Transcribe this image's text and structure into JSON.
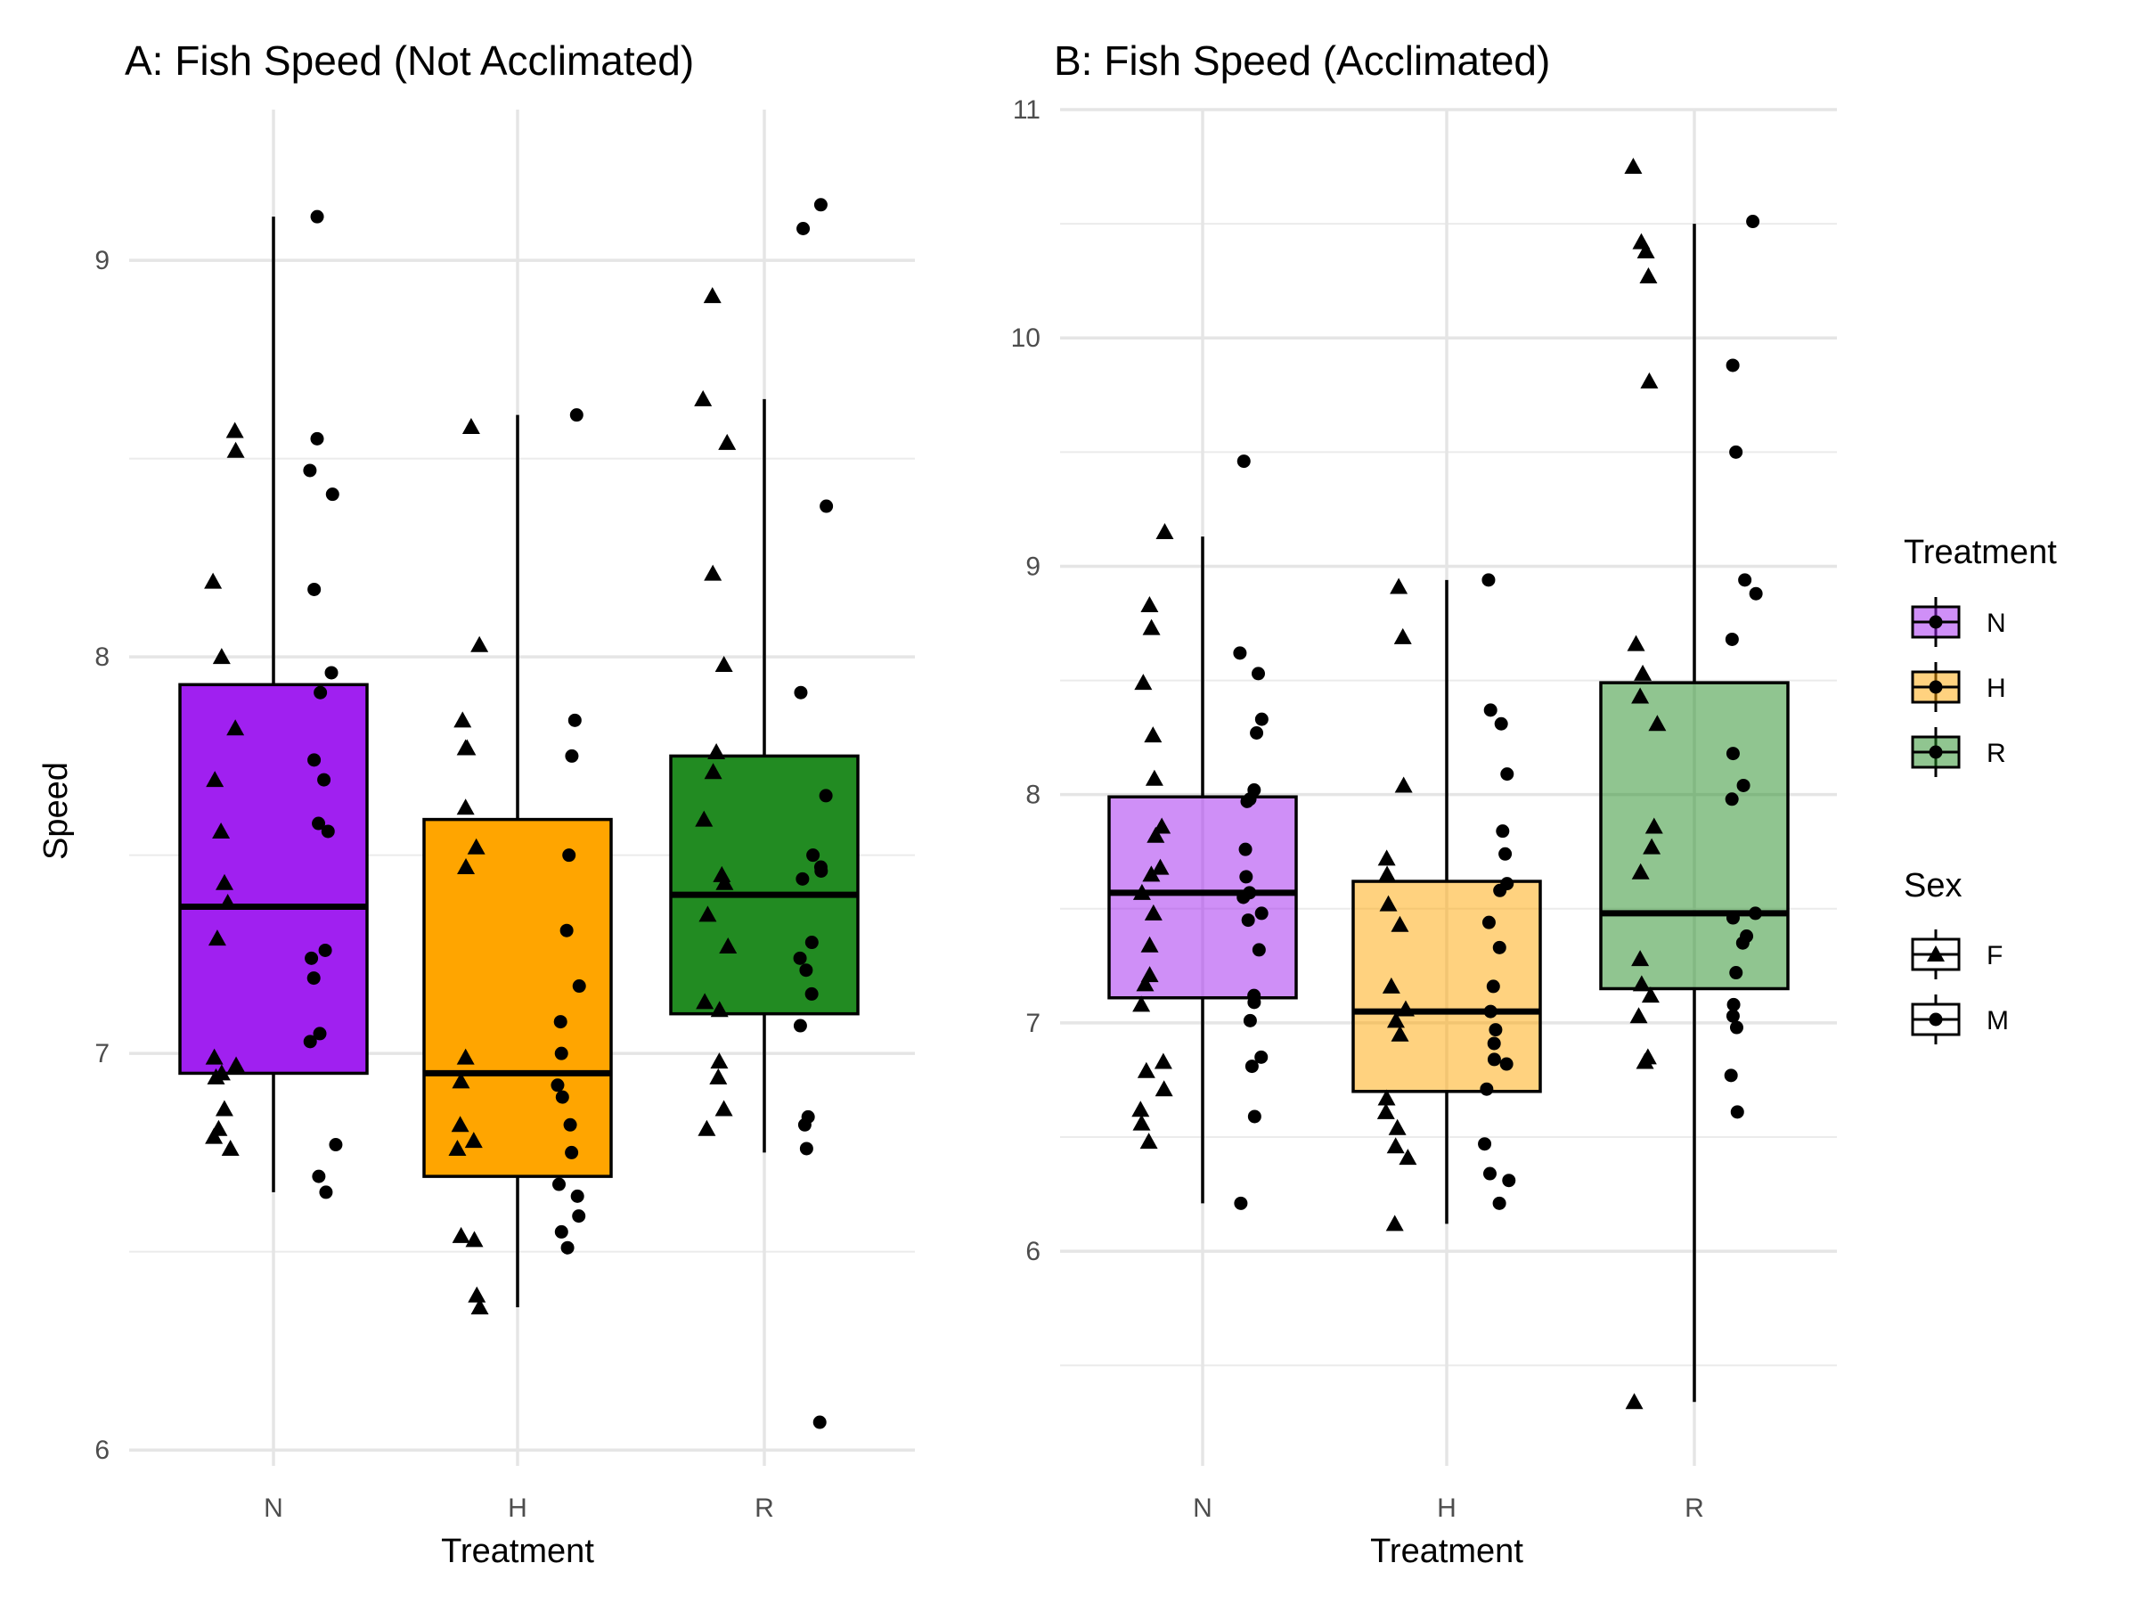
{
  "chart_data": [
    {
      "type": "boxplot",
      "title": "A: Fish Speed (Not Acclimated)",
      "xlabel": "Treatment",
      "ylabel": "Speed",
      "categories": [
        "N",
        "H",
        "R"
      ],
      "ylim": [
        5.96,
        9.38
      ],
      "y_ticks": [
        6,
        7,
        8,
        9
      ],
      "y_minor": [
        6.5,
        7.5,
        8.5
      ],
      "grid": true,
      "fill_alpha": 1.0,
      "boxes": [
        {
          "category": "N",
          "lower_whisker": 6.65,
          "q1": 6.95,
          "median": 7.37,
          "q3": 7.93,
          "upper_whisker": 9.11
        },
        {
          "category": "H",
          "lower_whisker": 6.36,
          "q1": 6.69,
          "median": 6.95,
          "q3": 7.59,
          "upper_whisker": 8.61
        },
        {
          "category": "R",
          "lower_whisker": 6.75,
          "q1": 7.1,
          "median": 7.4,
          "q3": 7.75,
          "upper_whisker": 8.65
        }
      ],
      "points": {
        "N": {
          "F": [
            8.57,
            8.52,
            8.19,
            8.0,
            7.82,
            7.69,
            7.56,
            7.43,
            7.38,
            7.29,
            6.99,
            6.97,
            6.95,
            6.94,
            6.86,
            6.81,
            6.79,
            6.76
          ],
          "M": [
            9.11,
            8.55,
            8.47,
            8.41,
            8.17,
            7.96,
            7.91,
            7.74,
            7.69,
            7.58,
            7.56,
            7.26,
            7.24,
            7.19,
            7.05,
            7.03,
            6.77,
            6.69,
            6.65
          ]
        },
        "H": {
          "F": [
            8.58,
            8.03,
            7.84,
            7.77,
            7.77,
            7.62,
            7.52,
            7.47,
            6.99,
            6.93,
            6.82,
            6.78,
            6.76,
            6.54,
            6.53,
            6.39,
            6.36
          ],
          "M": [
            8.61,
            7.84,
            7.75,
            7.5,
            7.31,
            7.17,
            7.08,
            7.0,
            6.92,
            6.89,
            6.82,
            6.75,
            6.67,
            6.64,
            6.59,
            6.55,
            6.51
          ]
        },
        "R": {
          "F": [
            8.91,
            8.65,
            8.54,
            8.21,
            7.98,
            7.76,
            7.71,
            7.59,
            7.45,
            7.43,
            7.35,
            7.27,
            7.13,
            7.11,
            6.98,
            6.94,
            6.86,
            6.81
          ],
          "M": [
            9.14,
            9.08,
            8.38,
            7.91,
            7.65,
            7.5,
            7.47,
            7.46,
            7.44,
            7.28,
            7.24,
            7.21,
            7.15,
            7.07,
            6.84,
            6.82,
            6.76,
            6.07
          ]
        }
      },
      "colors": {
        "N": "#a020f0",
        "H": "#ffa500",
        "R": "#228b22"
      }
    },
    {
      "type": "boxplot",
      "title": "B: Fish Speed (Acclimated)",
      "xlabel": "Treatment",
      "ylabel": "",
      "categories": [
        "N",
        "H",
        "R"
      ],
      "ylim": [
        5.06,
        11.0
      ],
      "y_ticks": [
        6,
        7,
        8,
        9,
        10,
        11
      ],
      "y_minor": [
        5.5,
        6.5,
        7.5,
        8.5,
        9.5,
        10.5
      ],
      "grid": true,
      "fill_alpha": 0.5,
      "boxes": [
        {
          "category": "N",
          "lower_whisker": 6.21,
          "q1": 7.11,
          "median": 7.57,
          "q3": 7.99,
          "upper_whisker": 9.13
        },
        {
          "category": "H",
          "lower_whisker": 6.12,
          "q1": 6.7,
          "median": 7.05,
          "q3": 7.62,
          "upper_whisker": 8.94
        },
        {
          "category": "R",
          "lower_whisker": 5.34,
          "q1": 7.15,
          "median": 7.48,
          "q3": 8.49,
          "upper_whisker": 10.5
        }
      ],
      "points": {
        "N": {
          "F": [
            9.15,
            8.83,
            8.73,
            8.49,
            8.26,
            8.07,
            7.86,
            7.82,
            7.68,
            7.65,
            7.57,
            7.48,
            7.34,
            7.21,
            7.17,
            7.08,
            6.83,
            6.79,
            6.71,
            6.62,
            6.56,
            6.48
          ],
          "M": [
            9.46,
            8.62,
            8.53,
            8.33,
            8.27,
            8.02,
            7.98,
            7.97,
            7.76,
            7.64,
            7.57,
            7.55,
            7.48,
            7.45,
            7.32,
            7.12,
            7.09,
            7.01,
            6.85,
            6.81,
            6.59,
            6.21
          ]
        },
        "H": {
          "F": [
            8.91,
            8.69,
            8.04,
            7.72,
            7.65,
            7.52,
            7.43,
            7.16,
            7.06,
            7.01,
            6.95,
            6.67,
            6.61,
            6.54,
            6.46,
            6.41,
            6.12
          ],
          "M": [
            8.94,
            8.37,
            8.31,
            8.09,
            7.84,
            7.74,
            7.61,
            7.58,
            7.44,
            7.33,
            7.16,
            7.05,
            6.97,
            6.91,
            6.84,
            6.82,
            6.71,
            6.47,
            6.34,
            6.31,
            6.21
          ]
        },
        "R": {
          "F": [
            10.75,
            10.42,
            10.38,
            10.27,
            9.81,
            8.66,
            8.53,
            8.43,
            8.31,
            7.86,
            7.77,
            7.66,
            7.28,
            7.17,
            7.12,
            7.03,
            6.85,
            6.83,
            5.34
          ],
          "M": [
            10.51,
            9.88,
            9.5,
            8.94,
            8.88,
            8.68,
            8.18,
            8.04,
            7.98,
            7.48,
            7.46,
            7.38,
            7.35,
            7.22,
            7.08,
            7.03,
            6.98,
            6.77,
            6.61
          ]
        }
      },
      "colors": {
        "N": "#a020f0",
        "H": "#ffa500",
        "R": "#228b22"
      }
    }
  ],
  "legends": {
    "treatment": {
      "title": "Treatment",
      "items": [
        "N",
        "H",
        "R"
      ]
    },
    "sex": {
      "title": "Sex",
      "items": [
        "F",
        "M"
      ]
    }
  }
}
